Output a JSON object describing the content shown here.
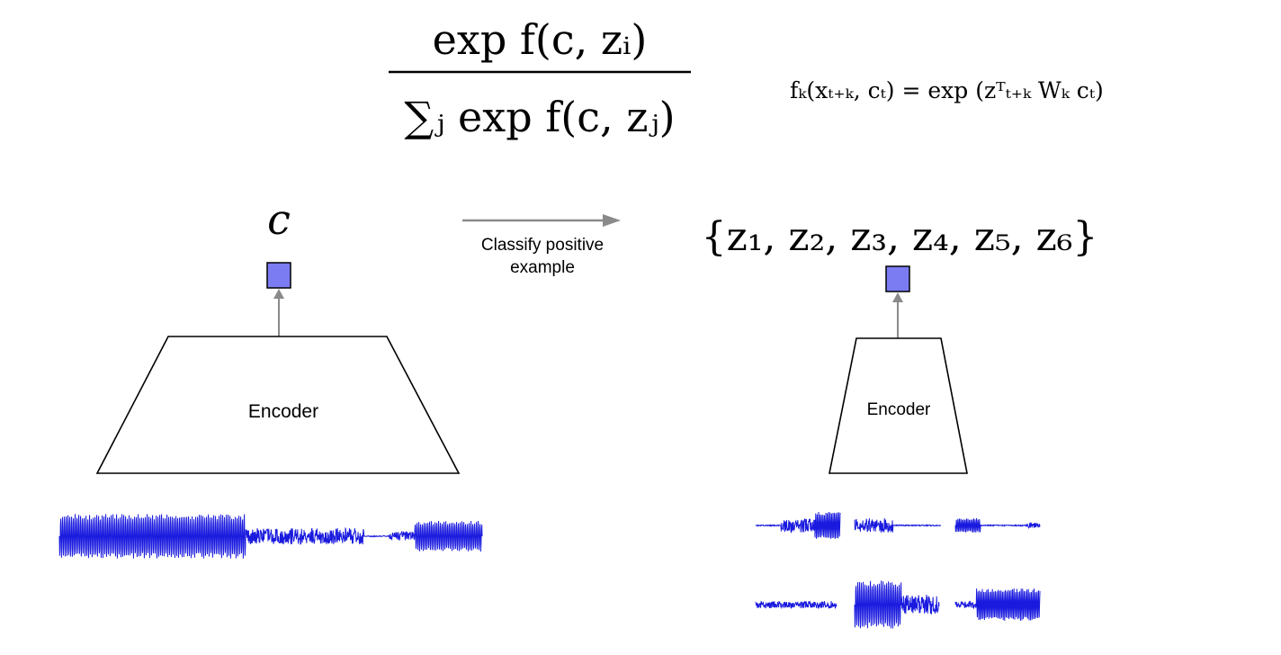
{
  "formulas": {
    "softmax_numerator": "exp f(c, zᵢ)",
    "softmax_denominator": "∑ⱼ exp f(c, zⱼ)",
    "score_function": "fₖ(xₜ₊ₖ, cₜ) = exp (zᵀₜ₊ₖ Wₖ cₜ)"
  },
  "context": {
    "symbol": "c",
    "encoder_label": "Encoder"
  },
  "candidates": {
    "set_label": "{z₁, z₂, z₃, z₄, z₅, z₆}",
    "encoder_label": "Encoder"
  },
  "arrow": {
    "label_line1": "Classify positive",
    "label_line2": "example"
  },
  "colors": {
    "embedding_fill": "#7b7cf2",
    "waveform": "#1a1adf",
    "arrow": "#8a8a8a",
    "outline": "#000000"
  }
}
